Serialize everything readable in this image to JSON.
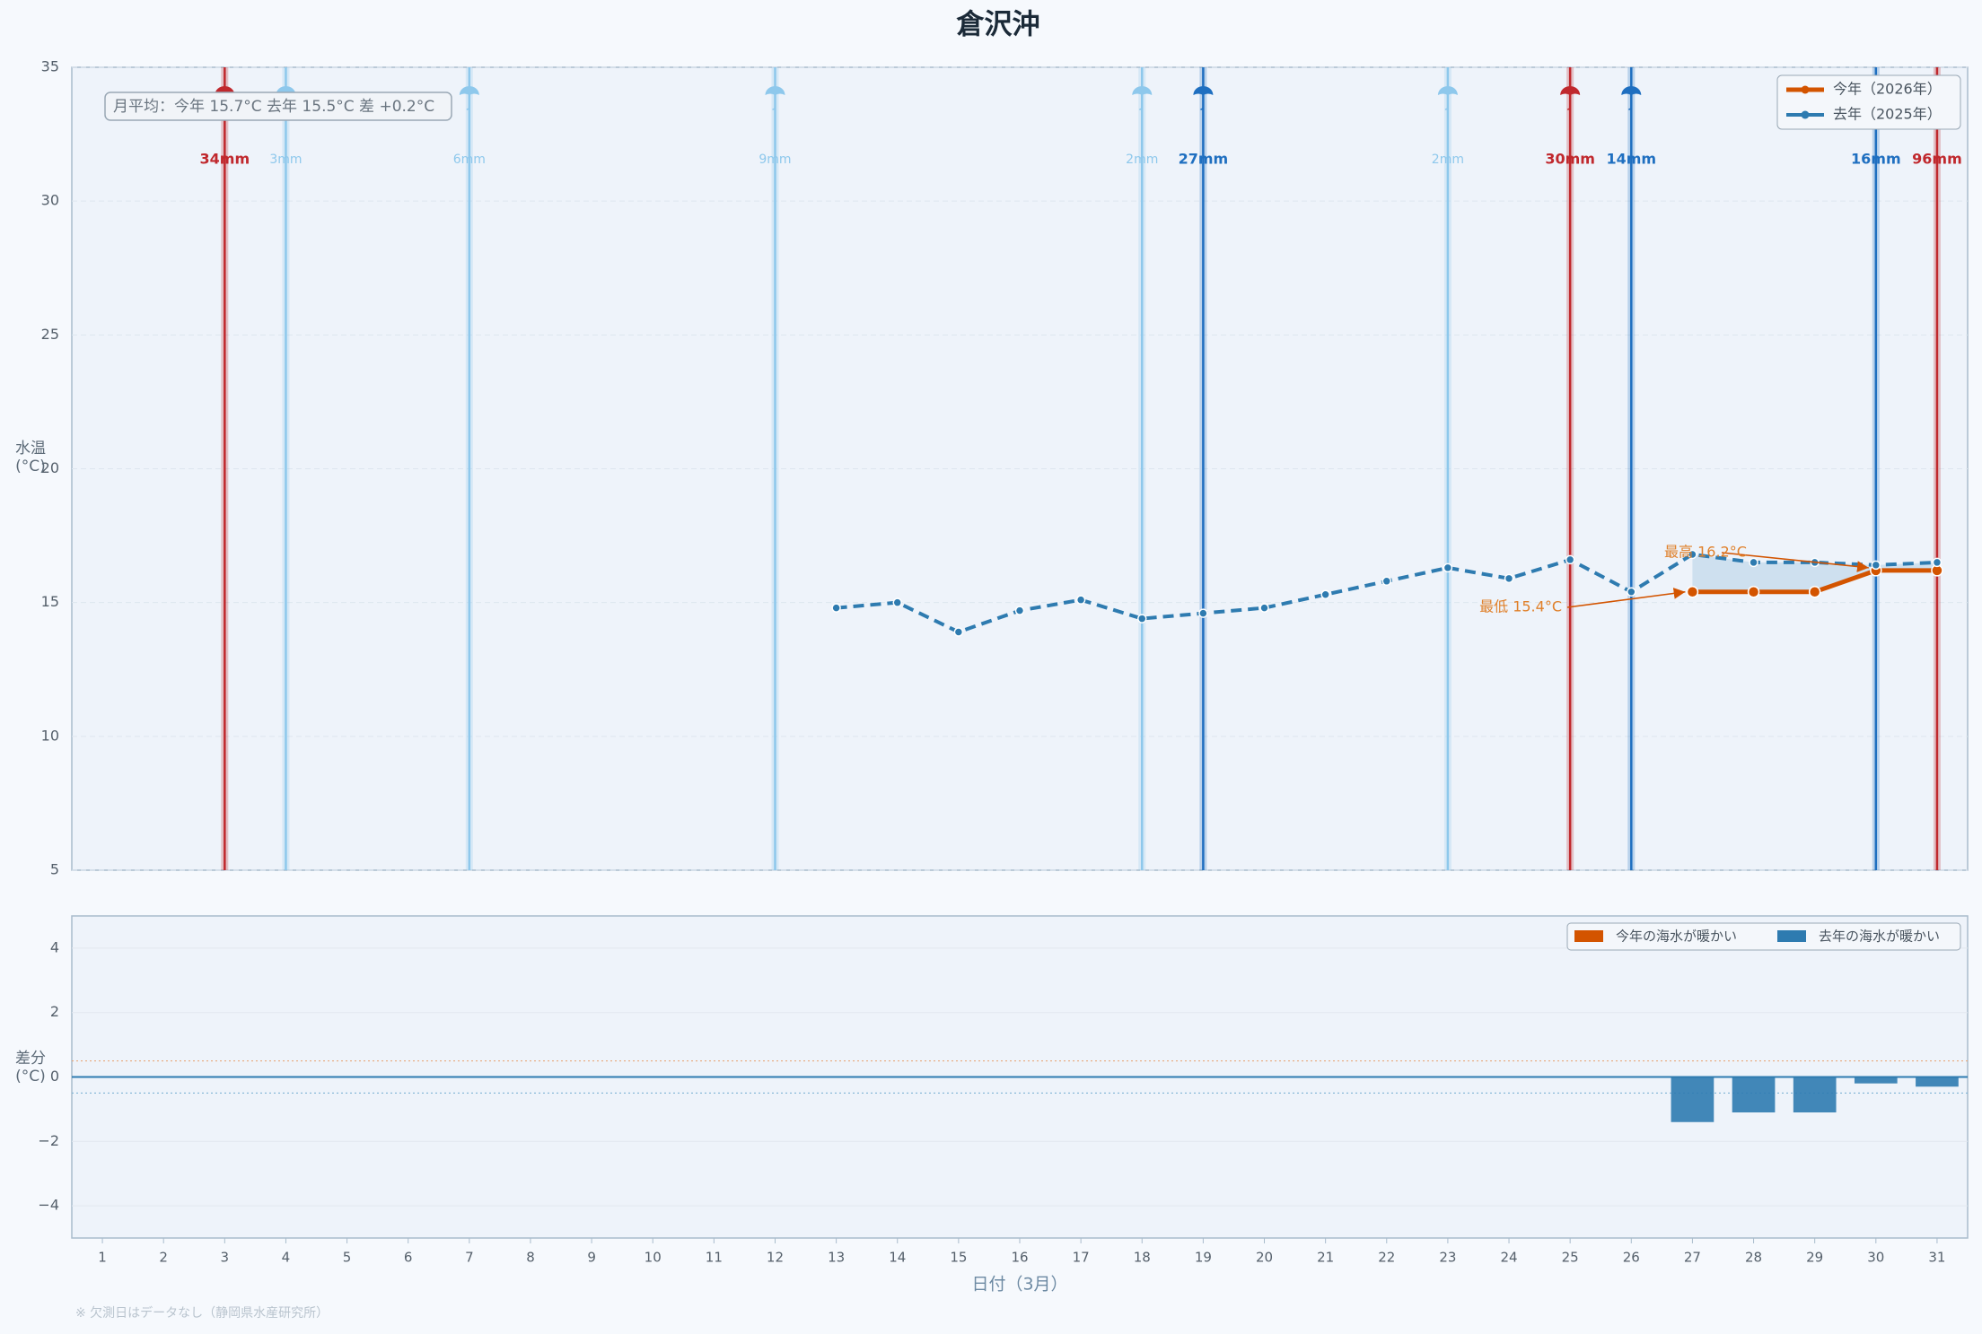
{
  "chart_data": [
    {
      "type": "line",
      "title": "倉沢沖",
      "ylabel": "水温(°C)",
      "categories": [
        "1",
        "2",
        "3",
        "4",
        "5",
        "6",
        "7",
        "8",
        "9",
        "10",
        "11",
        "12",
        "13",
        "14",
        "15",
        "16",
        "17",
        "18",
        "19",
        "20",
        "21",
        "22",
        "23",
        "24",
        "25",
        "26",
        "27",
        "28",
        "29",
        "30",
        "31"
      ],
      "series": [
        {
          "name": "今年（2026年）",
          "color": "#d35400",
          "values": [
            null,
            null,
            null,
            null,
            null,
            null,
            null,
            null,
            null,
            null,
            null,
            null,
            null,
            null,
            null,
            null,
            null,
            null,
            null,
            null,
            null,
            null,
            null,
            null,
            null,
            null,
            15.4,
            15.4,
            15.4,
            16.2,
            16.2
          ]
        },
        {
          "name": "去年（2025年）",
          "color": "#2e7bb0",
          "values": [
            null,
            null,
            null,
            null,
            null,
            null,
            null,
            null,
            null,
            null,
            null,
            null,
            14.8,
            15.0,
            13.9,
            14.7,
            15.1,
            14.4,
            14.6,
            14.8,
            15.3,
            15.8,
            16.3,
            15.9,
            16.6,
            15.4,
            16.8,
            16.5,
            16.5,
            16.4,
            16.5
          ]
        }
      ],
      "fill_color": "#b9d3e8",
      "ylim": [
        5,
        35
      ],
      "yticks": [
        5,
        10,
        15,
        20,
        25,
        30,
        35
      ],
      "grid": true,
      "legend": "upper right",
      "summary": "月平均：今年 15.7°C  去年 15.5°C  差 +0.2°C",
      "max_label": "最高 16.2°C",
      "min_label": "最低 15.4°C",
      "rain": {
        "values": [
          null,
          null,
          34,
          3,
          null,
          null,
          6,
          null,
          null,
          null,
          null,
          9,
          null,
          null,
          null,
          null,
          null,
          2,
          27,
          null,
          null,
          null,
          2,
          null,
          30,
          14,
          null,
          null,
          null,
          16,
          96
        ],
        "value_labels": [
          null,
          null,
          "34mm",
          "3mm",
          null,
          null,
          "6mm",
          null,
          null,
          null,
          null,
          "9mm",
          null,
          null,
          null,
          null,
          null,
          "2mm",
          "27mm",
          null,
          null,
          null,
          "2mm",
          null,
          "30mm",
          "14mm",
          null,
          null,
          null,
          "16mm",
          "96mm"
        ],
        "colors": [
          null,
          null,
          "#c0282d",
          "#8ec8ec",
          null,
          null,
          "#8ec8ec",
          null,
          null,
          null,
          null,
          "#8ec8ec",
          null,
          null,
          null,
          null,
          null,
          "#8ec8ec",
          "#1f6fc0",
          null,
          null,
          null,
          "#8ec8ec",
          null,
          "#c0282d",
          "#1f6fc0",
          null,
          null,
          null,
          "#1f6fc0",
          "#c0282d"
        ]
      }
    },
    {
      "type": "bar",
      "ylabel": "差分(°C)",
      "xlabel": "日付（3月）",
      "categories": [
        "1",
        "2",
        "3",
        "4",
        "5",
        "6",
        "7",
        "8",
        "9",
        "10",
        "11",
        "12",
        "13",
        "14",
        "15",
        "16",
        "17",
        "18",
        "19",
        "20",
        "21",
        "22",
        "23",
        "24",
        "25",
        "26",
        "27",
        "28",
        "29",
        "30",
        "31"
      ],
      "values": [
        null,
        null,
        null,
        null,
        null,
        null,
        null,
        null,
        null,
        null,
        null,
        null,
        null,
        null,
        null,
        null,
        null,
        null,
        null,
        null,
        null,
        null,
        null,
        null,
        null,
        null,
        -1.4,
        -1.1,
        -1.1,
        -0.2,
        -0.3
      ],
      "ylim": [
        -5,
        5
      ],
      "yticks": [
        {
          "value": -4,
          "label": "−4"
        },
        {
          "value": -2,
          "label": "−2"
        },
        0,
        2,
        4
      ],
      "grid": true,
      "legend": "upper right",
      "legend_entries": [
        {
          "name": "今年の海水が暖かい",
          "color": "#d35400"
        },
        {
          "name": "去年の海水が暖かい",
          "color": "#2e7bb0"
        }
      ],
      "reference_lines": [
        0.5,
        -0.5
      ],
      "note": "※ 欠測日はデータなし（静岡県水産研究所）"
    }
  ]
}
